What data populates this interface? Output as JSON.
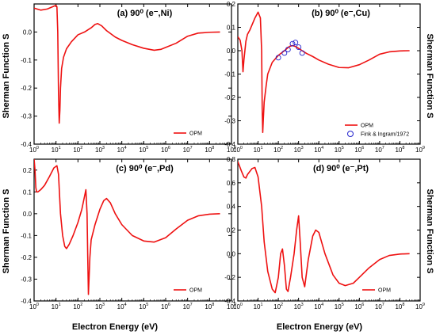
{
  "figure": {
    "ylabel": "Sherman Function S",
    "xlabel": "Electron Energy (eV)"
  },
  "chart_data": [
    {
      "type": "line",
      "title": "(a) 90⁰ (e⁻,Ni)",
      "xscale": "log",
      "xlim": [
        1,
        1000000000
      ],
      "ylim": [
        -0.4,
        0.1
      ],
      "yticks": [
        0.0,
        -0.1,
        -0.2,
        -0.3,
        -0.4
      ],
      "ytick_labels": [
        "0.0",
        "-0.1",
        "-0.2",
        "-0.3",
        "-0.4"
      ],
      "ylabel": "Sherman Function S",
      "legend": "bottom-right",
      "series": [
        {
          "name": "OPM",
          "color": "#ee1111",
          "x": [
            1,
            2,
            4,
            7,
            10,
            11,
            12,
            13,
            14,
            15,
            16,
            18,
            22,
            30,
            50,
            100,
            200,
            400,
            600,
            800,
            1200,
            2000,
            5000,
            10000,
            30000,
            100000,
            300000,
            600000,
            1000000,
            3000000,
            10000000,
            30000000,
            100000000,
            300000000
          ],
          "y": [
            0.085,
            0.078,
            0.082,
            0.09,
            0.095,
            0.09,
            0.0,
            -0.22,
            -0.325,
            -0.28,
            -0.2,
            -0.13,
            -0.09,
            -0.06,
            -0.035,
            -0.01,
            0.0,
            0.015,
            0.027,
            0.03,
            0.022,
            0.005,
            -0.018,
            -0.03,
            -0.045,
            -0.058,
            -0.065,
            -0.062,
            -0.055,
            -0.04,
            -0.015,
            -0.004,
            -0.001,
            0.0
          ]
        }
      ]
    },
    {
      "type": "line",
      "title": "(b) 90⁰ (e⁻,Cu)",
      "xscale": "log",
      "xlim": [
        1,
        1000000000
      ],
      "ylim": [
        -0.4,
        0.2
      ],
      "yticks": [
        0.2,
        0.1,
        0.0,
        -0.1,
        -0.2,
        -0.3,
        -0.4
      ],
      "ytick_labels": [
        "0.2",
        "0.1",
        "0.0",
        "-0.1",
        "-0.2",
        "-0.3",
        "-0.4"
      ],
      "ylabel": "Sherman Function S",
      "legend": "bottom-right",
      "series": [
        {
          "name": "OPM",
          "color": "#ee1111",
          "x": [
            1,
            1.3,
            1.6,
            1.8,
            2,
            2.5,
            3,
            4,
            5,
            7,
            10,
            13,
            15,
            16,
            17,
            18,
            20,
            25,
            30,
            50,
            100,
            200,
            350,
            500,
            700,
            1000,
            1500,
            2500,
            5000,
            10000,
            30000,
            100000,
            300000,
            1000000,
            3000000,
            10000000,
            30000000,
            100000000,
            300000000
          ],
          "y": [
            0.06,
            0.045,
            0.0,
            -0.09,
            -0.04,
            0.04,
            0.07,
            0.09,
            0.11,
            0.14,
            0.165,
            0.14,
            0.0,
            -0.25,
            -0.35,
            -0.3,
            -0.22,
            -0.15,
            -0.1,
            -0.05,
            -0.02,
            0.0,
            0.018,
            0.022,
            0.018,
            0.01,
            0.0,
            -0.012,
            -0.025,
            -0.04,
            -0.058,
            -0.072,
            -0.073,
            -0.06,
            -0.04,
            -0.015,
            -0.005,
            -0.001,
            0.0
          ]
        },
        {
          "name": "Fink & Ingram/1972",
          "color": "#2222cc",
          "marker": "open-circle",
          "x": [
            100,
            200,
            300,
            500,
            700,
            1000,
            1500
          ],
          "y": [
            -0.03,
            -0.01,
            0.005,
            0.03,
            0.035,
            0.015,
            -0.01
          ]
        }
      ]
    },
    {
      "type": "line",
      "title": "(c) 90⁰ (e⁻,Pd)",
      "xscale": "log",
      "xlim": [
        1,
        1000000000
      ],
      "ylim": [
        -0.4,
        0.25
      ],
      "yticks": [
        0.2,
        0.1,
        0.0,
        -0.1,
        -0.2,
        -0.3,
        -0.4
      ],
      "ytick_labels": [
        "0.2",
        "0.1",
        "0.0",
        "-0.1",
        "-0.2",
        "-0.3",
        "-0.4"
      ],
      "ylabel": "Sherman Function S",
      "legend": "bottom-right",
      "series": [
        {
          "name": "OPM",
          "color": "#ee1111",
          "x": [
            1,
            1.1,
            1.2,
            1.3,
            1.5,
            2,
            3,
            5,
            8,
            11,
            13,
            16,
            20,
            25,
            30,
            40,
            60,
            100,
            150,
            200,
            230,
            260,
            280,
            300,
            320,
            350,
            400,
            600,
            1000,
            1500,
            2000,
            3000,
            5000,
            10000,
            30000,
            100000,
            300000,
            1000000,
            3000000,
            10000000,
            30000000,
            100000000,
            300000000
          ],
          "y": [
            0.25,
            0.2,
            0.12,
            0.1,
            0.1,
            0.11,
            0.13,
            0.17,
            0.21,
            0.22,
            0.18,
            0.0,
            -0.1,
            -0.15,
            -0.16,
            -0.14,
            -0.1,
            -0.04,
            0.02,
            0.08,
            0.11,
            0.0,
            -0.2,
            -0.37,
            -0.3,
            -0.2,
            -0.12,
            -0.05,
            0.02,
            0.06,
            0.07,
            0.05,
            0.0,
            -0.05,
            -0.1,
            -0.125,
            -0.13,
            -0.11,
            -0.07,
            -0.03,
            -0.01,
            -0.002,
            0.0
          ]
        }
      ]
    },
    {
      "type": "line",
      "title": "(d) 90⁰ (e⁻,Pt)",
      "xscale": "log",
      "xlim": [
        1,
        1000000000
      ],
      "ylim": [
        -0.4,
        0.8
      ],
      "yticks": [
        0.8,
        0.6,
        0.4,
        0.2,
        0.0,
        -0.2,
        -0.4
      ],
      "ytick_labels": [
        "0.8",
        "0.6",
        "0.4",
        "0.2",
        "0.0",
        "-0.2",
        "-0.4"
      ],
      "ylabel": "Sherman Function S",
      "legend": "bottom-right",
      "series": [
        {
          "name": "OPM",
          "color": "#ee1111",
          "x": [
            1,
            1.5,
            2,
            2.5,
            3,
            5,
            7,
            10,
            15,
            20,
            30,
            50,
            70,
            100,
            130,
            160,
            200,
            250,
            300,
            400,
            600,
            800,
            1000,
            1200,
            1500,
            2000,
            3000,
            5000,
            7000,
            10000,
            20000,
            50000,
            100000,
            200000,
            500000,
            1000000,
            3000000,
            10000000,
            30000000,
            100000000,
            300000000
          ],
          "y": [
            0.78,
            0.7,
            0.65,
            0.64,
            0.67,
            0.72,
            0.73,
            0.65,
            0.4,
            0.1,
            -0.15,
            -0.3,
            -0.33,
            -0.2,
            0.0,
            0.04,
            -0.1,
            -0.3,
            -0.32,
            -0.2,
            0.0,
            0.2,
            0.32,
            0.1,
            -0.2,
            -0.28,
            -0.05,
            0.15,
            0.2,
            0.18,
            0.0,
            -0.18,
            -0.25,
            -0.27,
            -0.25,
            -0.2,
            -0.12,
            -0.05,
            -0.015,
            -0.003,
            0.0
          ]
        }
      ]
    }
  ]
}
